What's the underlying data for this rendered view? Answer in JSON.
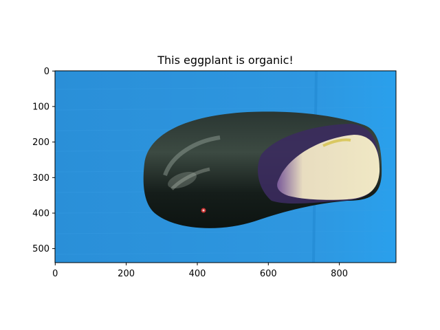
{
  "figure": {
    "title": "This eggplant is organic!",
    "image_subject": "eggplant",
    "image_size": {
      "width": 960,
      "height": 540
    },
    "background_color": "#2a95e0",
    "eggplant_colors": {
      "skin": "#15201c",
      "purple": "#3a2a5a",
      "cut_end": "#e9dfb6"
    }
  },
  "axes": {
    "x_ticks": [
      0,
      200,
      400,
      600,
      800
    ],
    "y_ticks": [
      0,
      100,
      200,
      300,
      400,
      500
    ],
    "xlim": [
      0,
      960
    ],
    "ylim": [
      540,
      0
    ]
  }
}
